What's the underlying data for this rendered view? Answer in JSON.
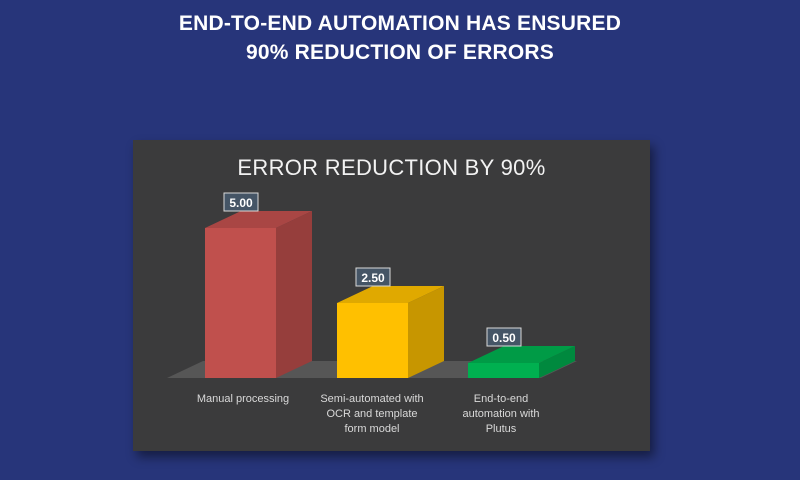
{
  "headline": {
    "line1": "END-TO-END AUTOMATION HAS ENSURED",
    "line2": "90% REDUCTION OF ERRORS"
  },
  "colors": {
    "background": "#27357a",
    "panel": "#3b3b3c",
    "bar_manual": "#c0504d",
    "bar_semi": "#ffc000",
    "bar_end": "#00b050"
  },
  "chart_data": {
    "type": "bar",
    "title": "ERROR REDUCTION BY 90%",
    "categories": [
      "Manual processing",
      "Semi-automated with\nOCR and template\nform model",
      "End-to-end\nautomation with\nPlutus"
    ],
    "values": [
      5.0,
      2.5,
      0.5
    ],
    "data_labels": [
      "5.00",
      "2.50",
      "0.50"
    ],
    "ylim": [
      0,
      5
    ],
    "xlabel": "",
    "ylabel": "",
    "grid": false,
    "legend": "none",
    "style": "3d-column"
  }
}
